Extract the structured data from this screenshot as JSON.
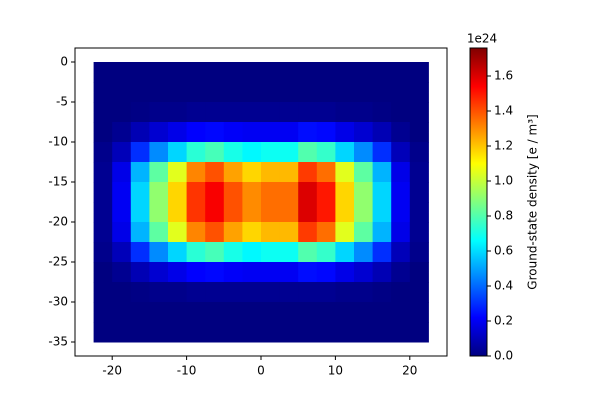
{
  "chart_data": {
    "type": "heatmap",
    "x": [
      -21.25,
      -18.75,
      -16.25,
      -13.75,
      -11.25,
      -8.75,
      -6.25,
      -3.75,
      -1.25,
      1.25,
      3.75,
      6.25,
      8.75,
      11.25,
      13.75,
      16.25,
      18.75,
      21.25
    ],
    "y": [
      -1.25,
      -3.75,
      -6.25,
      -8.75,
      -11.25,
      -13.75,
      -16.25,
      -18.75,
      -21.25,
      -23.75,
      -26.25,
      -28.75,
      -31.25,
      -33.75
    ],
    "values": [
      [
        0,
        0,
        0,
        0,
        0,
        0,
        0,
        0,
        0,
        0,
        0,
        0,
        0,
        0,
        0,
        0,
        0,
        0
      ],
      [
        0,
        0,
        0,
        0,
        0,
        0,
        0,
        0,
        0,
        0,
        0,
        0,
        0,
        0,
        0,
        0,
        0,
        0
      ],
      [
        0,
        0,
        0.01,
        0.02,
        0.02,
        0.03,
        0.03,
        0.03,
        0.03,
        0.03,
        0.03,
        0.03,
        0.03,
        0.02,
        0.02,
        0.01,
        0,
        0
      ],
      [
        0,
        0.03,
        0.09,
        0.14,
        0.18,
        0.22,
        0.23,
        0.21,
        0.2,
        0.2,
        0.2,
        0.24,
        0.23,
        0.18,
        0.14,
        0.09,
        0.03,
        0
      ],
      [
        0.02,
        0.1,
        0.3,
        0.46,
        0.59,
        0.73,
        0.78,
        0.7,
        0.65,
        0.68,
        0.68,
        0.8,
        0.75,
        0.59,
        0.46,
        0.3,
        0.1,
        0.02
      ],
      [
        0.03,
        0.18,
        0.53,
        0.82,
        1.05,
        1.31,
        1.4,
        1.26,
        1.17,
        1.22,
        1.22,
        1.44,
        1.35,
        1.05,
        0.82,
        0.53,
        0.18,
        0.03
      ],
      [
        0.03,
        0.2,
        0.59,
        0.91,
        1.17,
        1.45,
        1.55,
        1.4,
        1.3,
        1.35,
        1.35,
        1.6,
        1.5,
        1.17,
        0.91,
        0.59,
        0.2,
        0.03
      ],
      [
        0.03,
        0.2,
        0.59,
        0.91,
        1.17,
        1.45,
        1.55,
        1.4,
        1.3,
        1.35,
        1.35,
        1.6,
        1.5,
        1.17,
        0.91,
        0.59,
        0.2,
        0.03
      ],
      [
        0.03,
        0.18,
        0.53,
        0.82,
        1.05,
        1.31,
        1.4,
        1.26,
        1.17,
        1.22,
        1.22,
        1.44,
        1.35,
        1.05,
        0.82,
        0.53,
        0.18,
        0.03
      ],
      [
        0.02,
        0.1,
        0.3,
        0.46,
        0.59,
        0.73,
        0.78,
        0.7,
        0.65,
        0.68,
        0.68,
        0.8,
        0.75,
        0.59,
        0.46,
        0.3,
        0.1,
        0.02
      ],
      [
        0,
        0.03,
        0.09,
        0.14,
        0.18,
        0.22,
        0.23,
        0.21,
        0.2,
        0.2,
        0.2,
        0.24,
        0.23,
        0.18,
        0.14,
        0.09,
        0.03,
        0
      ],
      [
        0,
        0,
        0.01,
        0.02,
        0.02,
        0.03,
        0.03,
        0.03,
        0.03,
        0.03,
        0.03,
        0.03,
        0.03,
        0.02,
        0.02,
        0.01,
        0,
        0
      ],
      [
        0,
        0,
        0,
        0,
        0,
        0,
        0,
        0,
        0,
        0,
        0,
        0,
        0,
        0,
        0,
        0,
        0,
        0
      ],
      [
        0,
        0,
        0,
        0,
        0,
        0,
        0,
        0,
        0,
        0,
        0,
        0,
        0,
        0,
        0,
        0,
        0,
        0
      ]
    ],
    "colormap": "jet",
    "xlim": [
      -25,
      25
    ],
    "ylim": [
      -36.75,
      1.75
    ],
    "xticks": [
      -20,
      -10,
      0,
      10,
      20
    ],
    "yticks": [
      0,
      -5,
      -10,
      -15,
      -20,
      -25,
      -30,
      -35
    ],
    "clim": [
      0,
      1.76
    ],
    "cticks": [
      {
        "value": 0,
        "label": "0.0"
      },
      0.2,
      0.4,
      0.6,
      0.8,
      {
        "value": 1,
        "label": "1.0"
      },
      1.2,
      1.4,
      1.6
    ],
    "colorbar_offset": "1e24",
    "colorbar_label": "Ground-state density [e / m³]"
  }
}
